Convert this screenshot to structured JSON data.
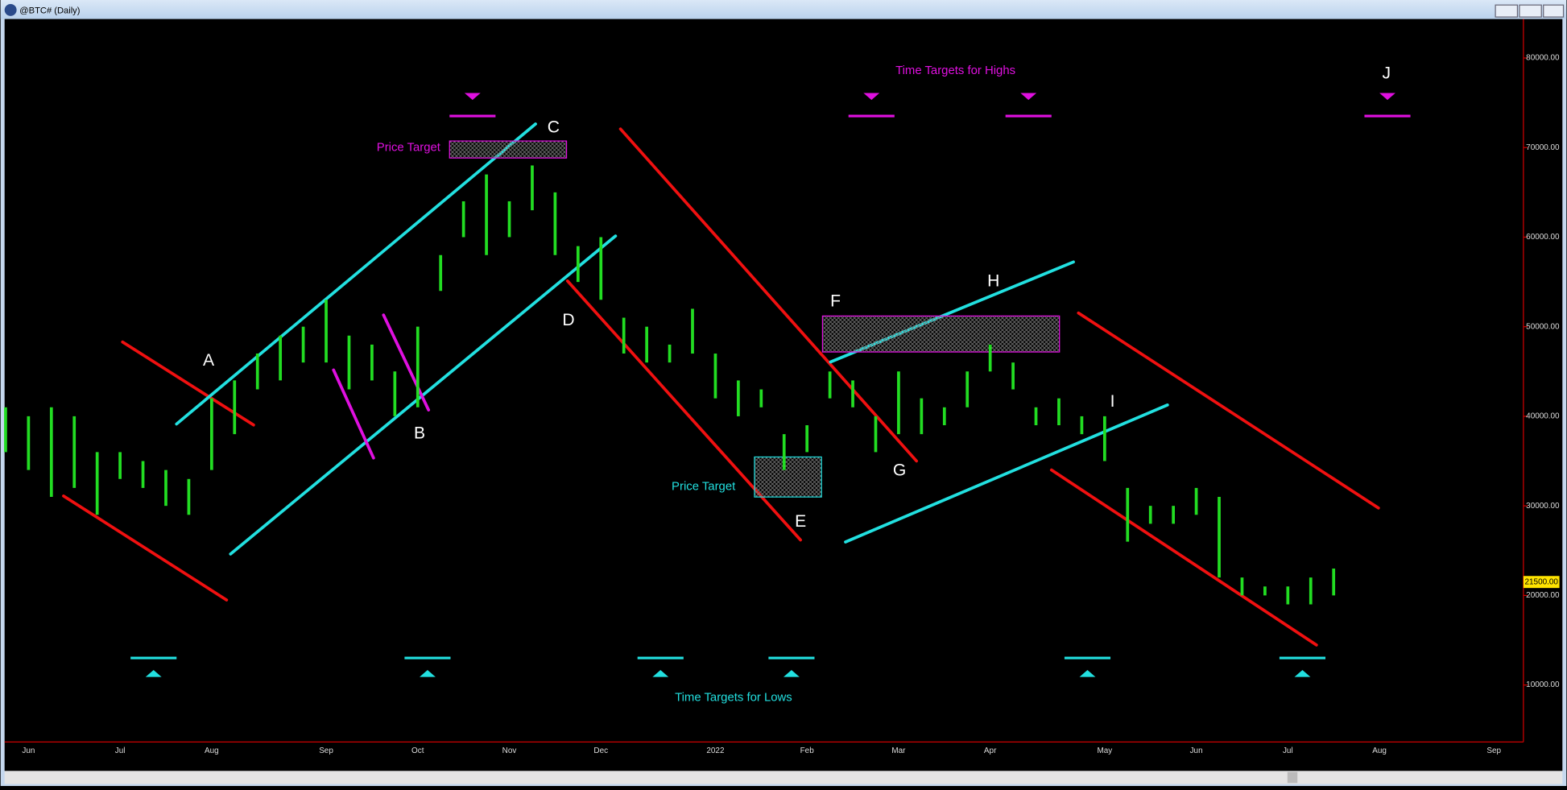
{
  "chart_data": {
    "type": "ohlc",
    "title": "@BTC# (Daily)",
    "color": "#22dd22",
    "categories": [
      null,
      "Jun",
      null,
      null,
      null,
      "Jul",
      null,
      null,
      null,
      "Aug",
      null,
      null,
      null,
      null,
      "Sep",
      null,
      null,
      null,
      "Oct",
      null,
      null,
      null,
      "Nov",
      null,
      null,
      null,
      "Dec",
      null,
      null,
      null,
      null,
      "2022",
      null,
      null,
      null,
      "Feb",
      null,
      null,
      null,
      "Mar",
      null,
      null,
      null,
      "Apr",
      null,
      null,
      null,
      null,
      "May",
      null,
      null,
      null,
      "Jun",
      null,
      null,
      null,
      "Jul",
      null,
      null,
      null,
      "Aug",
      null,
      null,
      null,
      null,
      "Sep"
    ],
    "high": [
      41000,
      40000,
      41000,
      40000,
      36000,
      36000,
      35000,
      34000,
      33000,
      42000,
      44000,
      47000,
      49000,
      50000,
      53000,
      49000,
      48000,
      45000,
      50000,
      58000,
      64000,
      67000,
      64000,
      68000,
      65000,
      59000,
      60000,
      51000,
      50000,
      48000,
      52000,
      47000,
      44000,
      43000,
      38000,
      39000,
      45000,
      44000,
      40000,
      45000,
      42000,
      41000,
      45000,
      48000,
      46000,
      41000,
      42000,
      40000,
      40000,
      32000,
      30000,
      30000,
      32000,
      31000,
      22000,
      21000,
      21000,
      22000,
      23000,
      null,
      null,
      null,
      null,
      null,
      null,
      null
    ],
    "low": [
      36000,
      34000,
      31000,
      32000,
      29000,
      33000,
      32000,
      30000,
      29000,
      34000,
      38000,
      43000,
      44000,
      46000,
      46000,
      43000,
      44000,
      40000,
      41000,
      54000,
      60000,
      58000,
      60000,
      63000,
      58000,
      55000,
      53000,
      47000,
      46000,
      46000,
      47000,
      42000,
      40000,
      41000,
      34000,
      36000,
      42000,
      41000,
      36000,
      38000,
      38000,
      39000,
      41000,
      45000,
      43000,
      39000,
      39000,
      38000,
      35000,
      26000,
      28000,
      28000,
      29000,
      22000,
      20000,
      20000,
      19000,
      19000,
      20000,
      null,
      null,
      null,
      null,
      null,
      null,
      null
    ],
    "ylim": [
      3640,
      84350
    ],
    "yticks": [
      {
        "value": 10000,
        "label": "10000.00"
      },
      {
        "value": 20000,
        "label": "20000.00"
      },
      {
        "value": 30000,
        "label": "30000.00"
      },
      {
        "value": 40000,
        "label": "40000.00"
      },
      {
        "value": 50000,
        "label": "50000.00"
      },
      {
        "value": 60000,
        "label": "60000.00"
      },
      {
        "value": 70000,
        "label": "70000.00"
      },
      {
        "value": 80000,
        "label": "80000.00"
      }
    ],
    "last_price": {
      "value": 21500,
      "label": "21500.00"
    },
    "annotations": [
      "Price Target",
      "Time Targets for Highs",
      "Time Targets for Lows",
      "Price Target",
      "A",
      "B",
      "C",
      "D",
      "E",
      "F",
      "G",
      "H",
      "I",
      "J"
    ]
  }
}
